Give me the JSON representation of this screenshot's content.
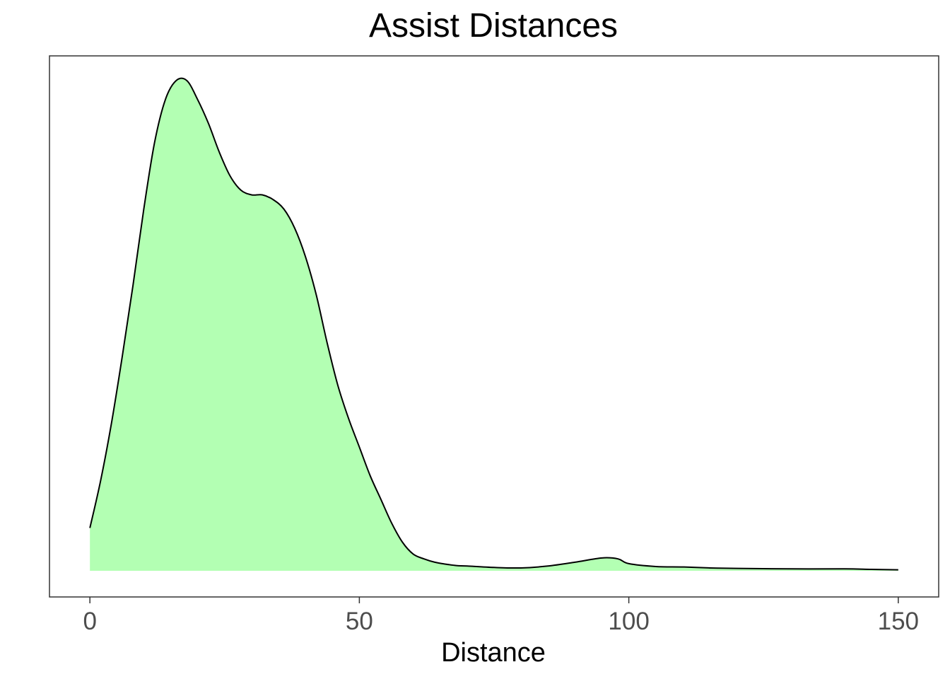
{
  "chart_data": {
    "type": "area",
    "title": "Assist Distances",
    "xlabel": "Distance",
    "ylabel": "",
    "xlim": [
      -7.5,
      157.5
    ],
    "ylim": [
      0,
      1.05
    ],
    "xticks": [
      0,
      50,
      100,
      150
    ],
    "xtick_labels": [
      "0",
      "50",
      "100",
      "150"
    ],
    "grid": false,
    "fill_color": "#b3ffb3",
    "line_color": "#000000",
    "series": [
      {
        "x": [
          0,
          2,
          4,
          6,
          8,
          10,
          12,
          14,
          16,
          18,
          20,
          22,
          24,
          26,
          28,
          30,
          32,
          34,
          36,
          38,
          40,
          42,
          44,
          46,
          48,
          50,
          52,
          54,
          56,
          58,
          60,
          62,
          64,
          66,
          68,
          70,
          75,
          80,
          85,
          90,
          95,
          98,
          100,
          105,
          110,
          115,
          120,
          130,
          140,
          145,
          150
        ],
        "y": [
          0.09,
          0.19,
          0.31,
          0.45,
          0.6,
          0.76,
          0.9,
          0.99,
          1.03,
          1.03,
          0.99,
          0.94,
          0.88,
          0.83,
          0.8,
          0.79,
          0.79,
          0.78,
          0.76,
          0.72,
          0.66,
          0.58,
          0.48,
          0.39,
          0.32,
          0.26,
          0.2,
          0.15,
          0.1,
          0.06,
          0.035,
          0.025,
          0.018,
          0.014,
          0.011,
          0.01,
          0.007,
          0.006,
          0.01,
          0.018,
          0.027,
          0.025,
          0.015,
          0.009,
          0.008,
          0.006,
          0.005,
          0.004,
          0.004,
          0.003,
          0.002
        ]
      }
    ]
  }
}
